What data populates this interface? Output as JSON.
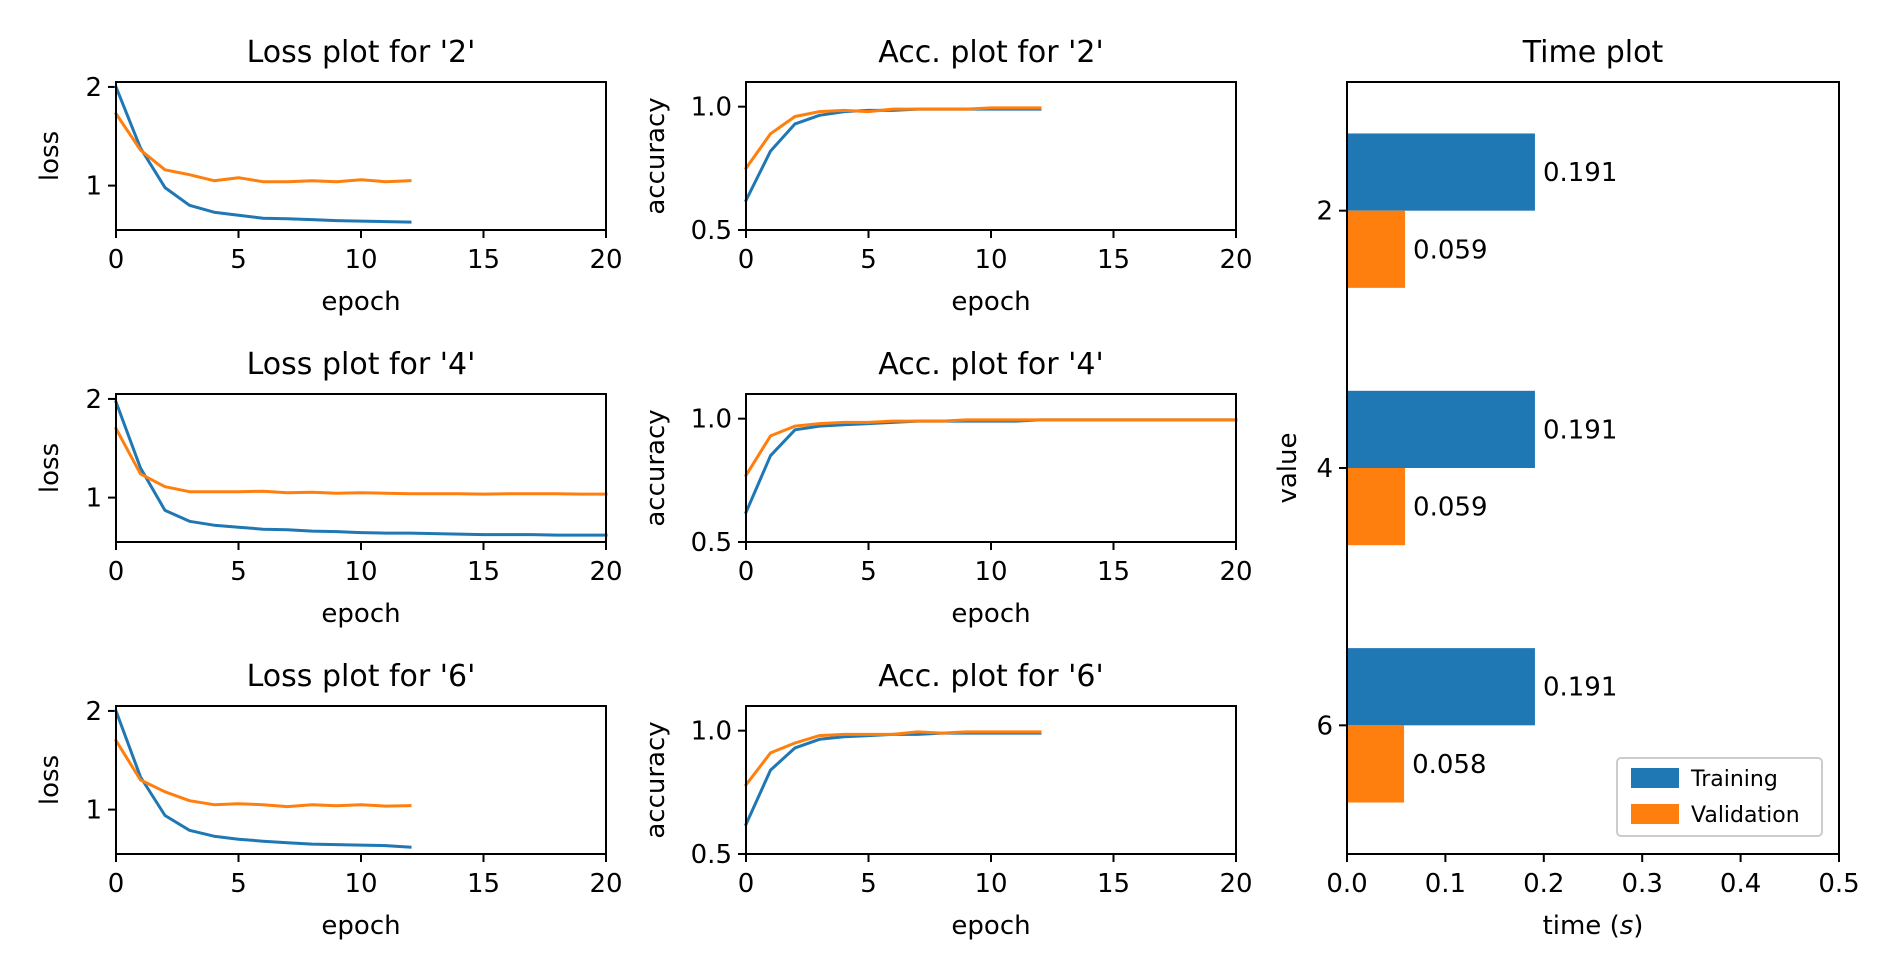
{
  "colors": {
    "training": "#1f77b4",
    "validation": "#ff7f0e",
    "axes": "#000000",
    "background": "#ffffff"
  },
  "chart_data": [
    {
      "id": "loss-2",
      "type": "line",
      "title": "Loss plot for '2'",
      "xlabel": "epoch",
      "ylabel": "loss",
      "xlim": [
        0,
        20
      ],
      "ylim": [
        0.55,
        2.05
      ],
      "xticks": [
        0,
        5,
        10,
        15,
        20
      ],
      "yticks": [
        1,
        2
      ],
      "grid": false,
      "series": [
        {
          "color": "training",
          "x": [
            0,
            1,
            2,
            3,
            4,
            5,
            6,
            7,
            8,
            9,
            10,
            11,
            12
          ],
          "y": [
            2.0,
            1.38,
            0.98,
            0.8,
            0.73,
            0.7,
            0.67,
            0.665,
            0.655,
            0.645,
            0.64,
            0.635,
            0.63
          ]
        },
        {
          "color": "validation",
          "x": [
            0,
            1,
            2,
            3,
            4,
            5,
            6,
            7,
            8,
            9,
            10,
            11,
            12
          ],
          "y": [
            1.73,
            1.36,
            1.16,
            1.11,
            1.05,
            1.08,
            1.04,
            1.04,
            1.05,
            1.04,
            1.06,
            1.04,
            1.05
          ]
        }
      ]
    },
    {
      "id": "acc-2",
      "type": "line",
      "title": "Acc. plot for '2'",
      "xlabel": "epoch",
      "ylabel": "accuracy",
      "xlim": [
        0,
        20
      ],
      "ylim": [
        0.5,
        1.1
      ],
      "xticks": [
        0,
        5,
        10,
        15,
        20
      ],
      "yticks": [
        0.5,
        1.0
      ],
      "yticklabels": [
        "0.5",
        "1.0"
      ],
      "grid": false,
      "series": [
        {
          "color": "training",
          "x": [
            0,
            1,
            2,
            3,
            4,
            5,
            6,
            7,
            8,
            9,
            10,
            11,
            12
          ],
          "y": [
            0.62,
            0.82,
            0.93,
            0.965,
            0.98,
            0.985,
            0.985,
            0.99,
            0.99,
            0.99,
            0.99,
            0.99,
            0.99
          ]
        },
        {
          "color": "validation",
          "x": [
            0,
            1,
            2,
            3,
            4,
            5,
            6,
            7,
            8,
            9,
            10,
            11,
            12
          ],
          "y": [
            0.75,
            0.89,
            0.96,
            0.98,
            0.985,
            0.98,
            0.99,
            0.99,
            0.99,
            0.99,
            0.995,
            0.995,
            0.995
          ]
        }
      ]
    },
    {
      "id": "loss-4",
      "type": "line",
      "title": "Loss plot for '4'",
      "xlabel": "epoch",
      "ylabel": "loss",
      "xlim": [
        0,
        20
      ],
      "ylim": [
        0.55,
        2.05
      ],
      "xticks": [
        0,
        5,
        10,
        15,
        20
      ],
      "yticks": [
        1,
        2
      ],
      "grid": false,
      "series": [
        {
          "color": "training",
          "x": [
            0,
            1,
            2,
            3,
            4,
            5,
            6,
            7,
            8,
            9,
            10,
            11,
            12,
            13,
            14,
            15,
            16,
            17,
            18,
            19,
            20
          ],
          "y": [
            1.97,
            1.3,
            0.87,
            0.76,
            0.72,
            0.7,
            0.68,
            0.675,
            0.66,
            0.655,
            0.645,
            0.64,
            0.64,
            0.635,
            0.63,
            0.625,
            0.625,
            0.625,
            0.62,
            0.62,
            0.62
          ]
        },
        {
          "color": "validation",
          "x": [
            0,
            1,
            2,
            3,
            4,
            5,
            6,
            7,
            8,
            9,
            10,
            11,
            12,
            13,
            14,
            15,
            16,
            17,
            18,
            19,
            20
          ],
          "y": [
            1.7,
            1.24,
            1.11,
            1.06,
            1.06,
            1.06,
            1.065,
            1.05,
            1.055,
            1.045,
            1.05,
            1.045,
            1.04,
            1.04,
            1.04,
            1.035,
            1.04,
            1.04,
            1.04,
            1.035,
            1.035
          ]
        }
      ]
    },
    {
      "id": "acc-4",
      "type": "line",
      "title": "Acc. plot for '4'",
      "xlabel": "epoch",
      "ylabel": "accuracy",
      "xlim": [
        0,
        20
      ],
      "ylim": [
        0.5,
        1.1
      ],
      "xticks": [
        0,
        5,
        10,
        15,
        20
      ],
      "yticks": [
        0.5,
        1.0
      ],
      "yticklabels": [
        "0.5",
        "1.0"
      ],
      "grid": false,
      "series": [
        {
          "color": "training",
          "x": [
            0,
            1,
            2,
            3,
            4,
            5,
            6,
            7,
            8,
            9,
            10,
            11,
            12,
            13,
            14,
            15,
            16,
            17,
            18,
            19,
            20
          ],
          "y": [
            0.62,
            0.85,
            0.955,
            0.97,
            0.975,
            0.98,
            0.985,
            0.99,
            0.99,
            0.99,
            0.99,
            0.99,
            0.995,
            0.995,
            0.995,
            0.995,
            0.995,
            0.995,
            0.995,
            0.995,
            0.995
          ]
        },
        {
          "color": "validation",
          "x": [
            0,
            1,
            2,
            3,
            4,
            5,
            6,
            7,
            8,
            9,
            10,
            11,
            12,
            13,
            14,
            15,
            16,
            17,
            18,
            19,
            20
          ],
          "y": [
            0.77,
            0.93,
            0.97,
            0.98,
            0.985,
            0.985,
            0.99,
            0.99,
            0.99,
            0.995,
            0.995,
            0.995,
            0.995,
            0.995,
            0.995,
            0.995,
            0.995,
            0.995,
            0.995,
            0.995,
            0.995
          ]
        }
      ]
    },
    {
      "id": "loss-6",
      "type": "line",
      "title": "Loss plot for '6'",
      "xlabel": "epoch",
      "ylabel": "loss",
      "xlim": [
        0,
        20
      ],
      "ylim": [
        0.55,
        2.05
      ],
      "xticks": [
        0,
        5,
        10,
        15,
        20
      ],
      "yticks": [
        1,
        2
      ],
      "grid": false,
      "series": [
        {
          "color": "training",
          "x": [
            0,
            1,
            2,
            3,
            4,
            5,
            6,
            7,
            8,
            9,
            10,
            11,
            12
          ],
          "y": [
            2.0,
            1.33,
            0.94,
            0.79,
            0.73,
            0.7,
            0.68,
            0.665,
            0.65,
            0.645,
            0.64,
            0.635,
            0.62
          ]
        },
        {
          "color": "validation",
          "x": [
            0,
            1,
            2,
            3,
            4,
            5,
            6,
            7,
            8,
            9,
            10,
            11,
            12
          ],
          "y": [
            1.7,
            1.3,
            1.18,
            1.09,
            1.05,
            1.06,
            1.05,
            1.03,
            1.05,
            1.04,
            1.05,
            1.035,
            1.04
          ]
        }
      ]
    },
    {
      "id": "acc-6",
      "type": "line",
      "title": "Acc. plot for '6'",
      "xlabel": "epoch",
      "ylabel": "accuracy",
      "xlim": [
        0,
        20
      ],
      "ylim": [
        0.5,
        1.1
      ],
      "xticks": [
        0,
        5,
        10,
        15,
        20
      ],
      "yticks": [
        0.5,
        1.0
      ],
      "yticklabels": [
        "0.5",
        "1.0"
      ],
      "grid": false,
      "series": [
        {
          "color": "training",
          "x": [
            0,
            1,
            2,
            3,
            4,
            5,
            6,
            7,
            8,
            9,
            10,
            11,
            12
          ],
          "y": [
            0.62,
            0.84,
            0.93,
            0.965,
            0.975,
            0.98,
            0.985,
            0.985,
            0.99,
            0.99,
            0.99,
            0.99,
            0.99
          ]
        },
        {
          "color": "validation",
          "x": [
            0,
            1,
            2,
            3,
            4,
            5,
            6,
            7,
            8,
            9,
            10,
            11,
            12
          ],
          "y": [
            0.78,
            0.91,
            0.95,
            0.98,
            0.985,
            0.985,
            0.985,
            0.995,
            0.99,
            0.995,
            0.995,
            0.995,
            0.995
          ]
        }
      ]
    },
    {
      "id": "time",
      "type": "bar",
      "orientation": "horizontal",
      "title": "Time plot",
      "xlabel": "time ",
      "xlabel_italic": "s",
      "ylabel": "value",
      "xlim": [
        0,
        0.5
      ],
      "xticks": [
        0.0,
        0.1,
        0.2,
        0.3,
        0.4,
        0.5
      ],
      "xticklabels": [
        "0.0",
        "0.1",
        "0.2",
        "0.3",
        "0.4",
        "0.5"
      ],
      "categories": [
        "2",
        "4",
        "6"
      ],
      "series": [
        {
          "name": "Training",
          "color": "training",
          "values": [
            0.191,
            0.191,
            0.191
          ],
          "labels": [
            "0.191",
            "0.191",
            "0.191"
          ]
        },
        {
          "name": "Validation",
          "color": "validation",
          "values": [
            0.059,
            0.059,
            0.058
          ],
          "labels": [
            "0.059",
            "0.059",
            "0.058"
          ]
        }
      ],
      "legend": {
        "placement": "lower-right"
      },
      "grid": false
    }
  ]
}
